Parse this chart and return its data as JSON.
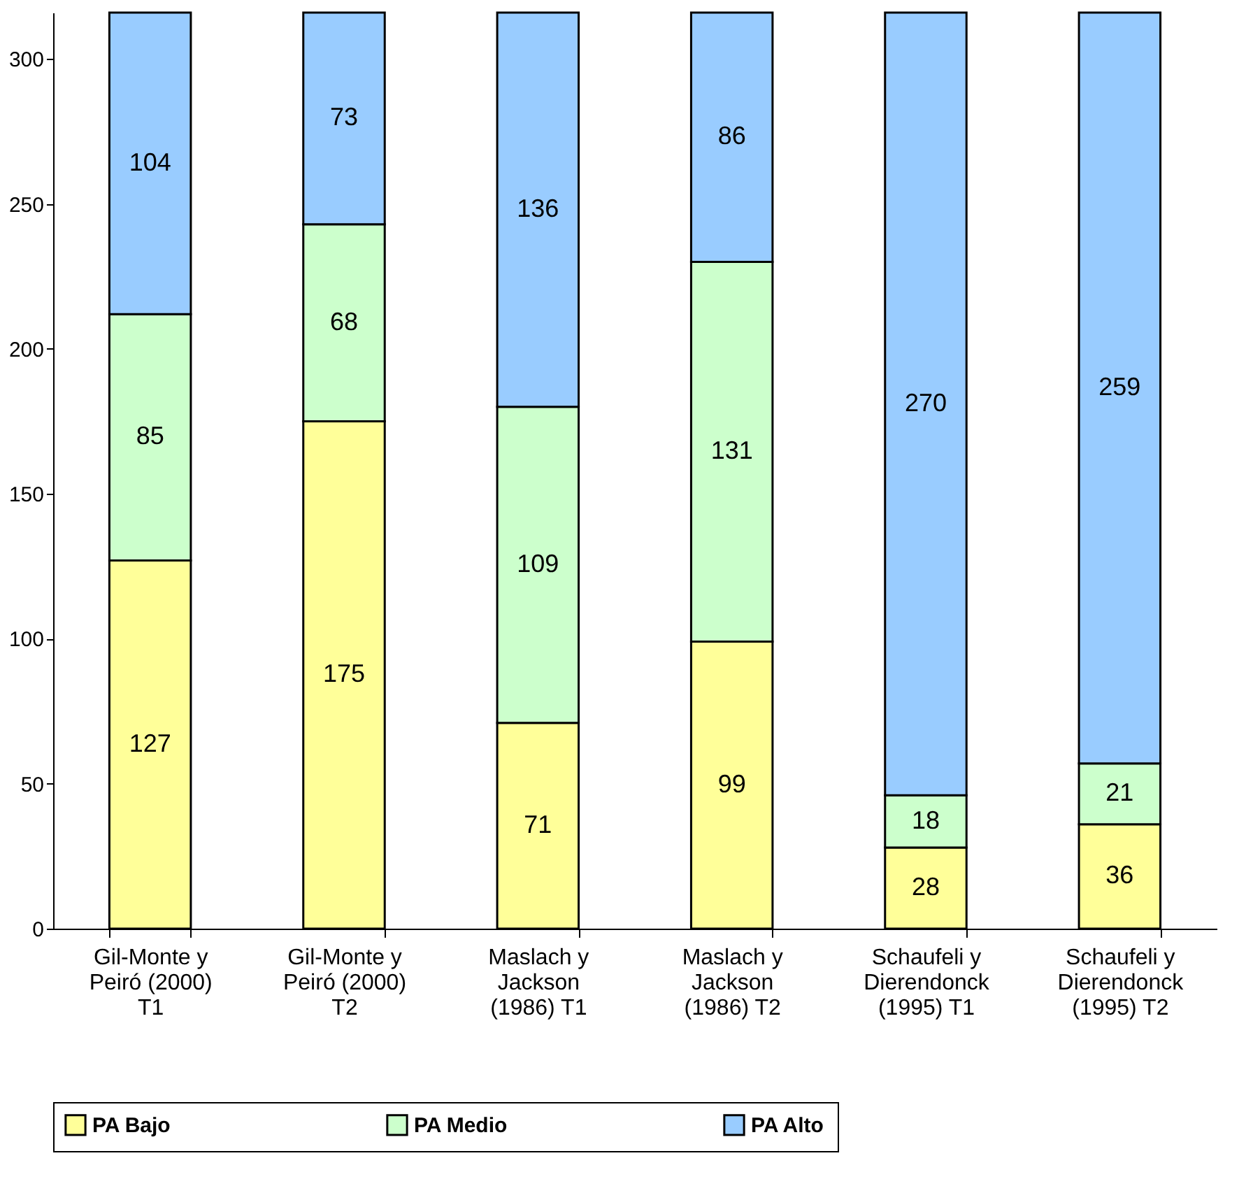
{
  "chart_data": {
    "type": "bar",
    "stacked": true,
    "categories": [
      "Gil-Monte y Peiró (2000) T1",
      "Gil-Monte y Peiró (2000) T2",
      "Maslach y Jackson (1986) T1",
      "Maslach y Jackson (1986) T2",
      "Schaufeli y Dierendonck (1995) T1",
      "Schaufeli y Dierendonck (1995) T2"
    ],
    "series": [
      {
        "name": "PA Bajo",
        "color": "#ffff99",
        "values": [
          127,
          175,
          71,
          99,
          28,
          36
        ]
      },
      {
        "name": "PA Medio",
        "color": "#ccffcc",
        "values": [
          85,
          68,
          109,
          131,
          18,
          21
        ]
      },
      {
        "name": "PA Alto",
        "color": "#99ccff",
        "values": [
          104,
          73,
          136,
          86,
          270,
          259
        ]
      }
    ],
    "ylim": [
      0,
      316
    ],
    "yticks": [
      0,
      50,
      100,
      150,
      200,
      250,
      300
    ],
    "grid": false,
    "legend": "bottom",
    "data_labels": true
  }
}
